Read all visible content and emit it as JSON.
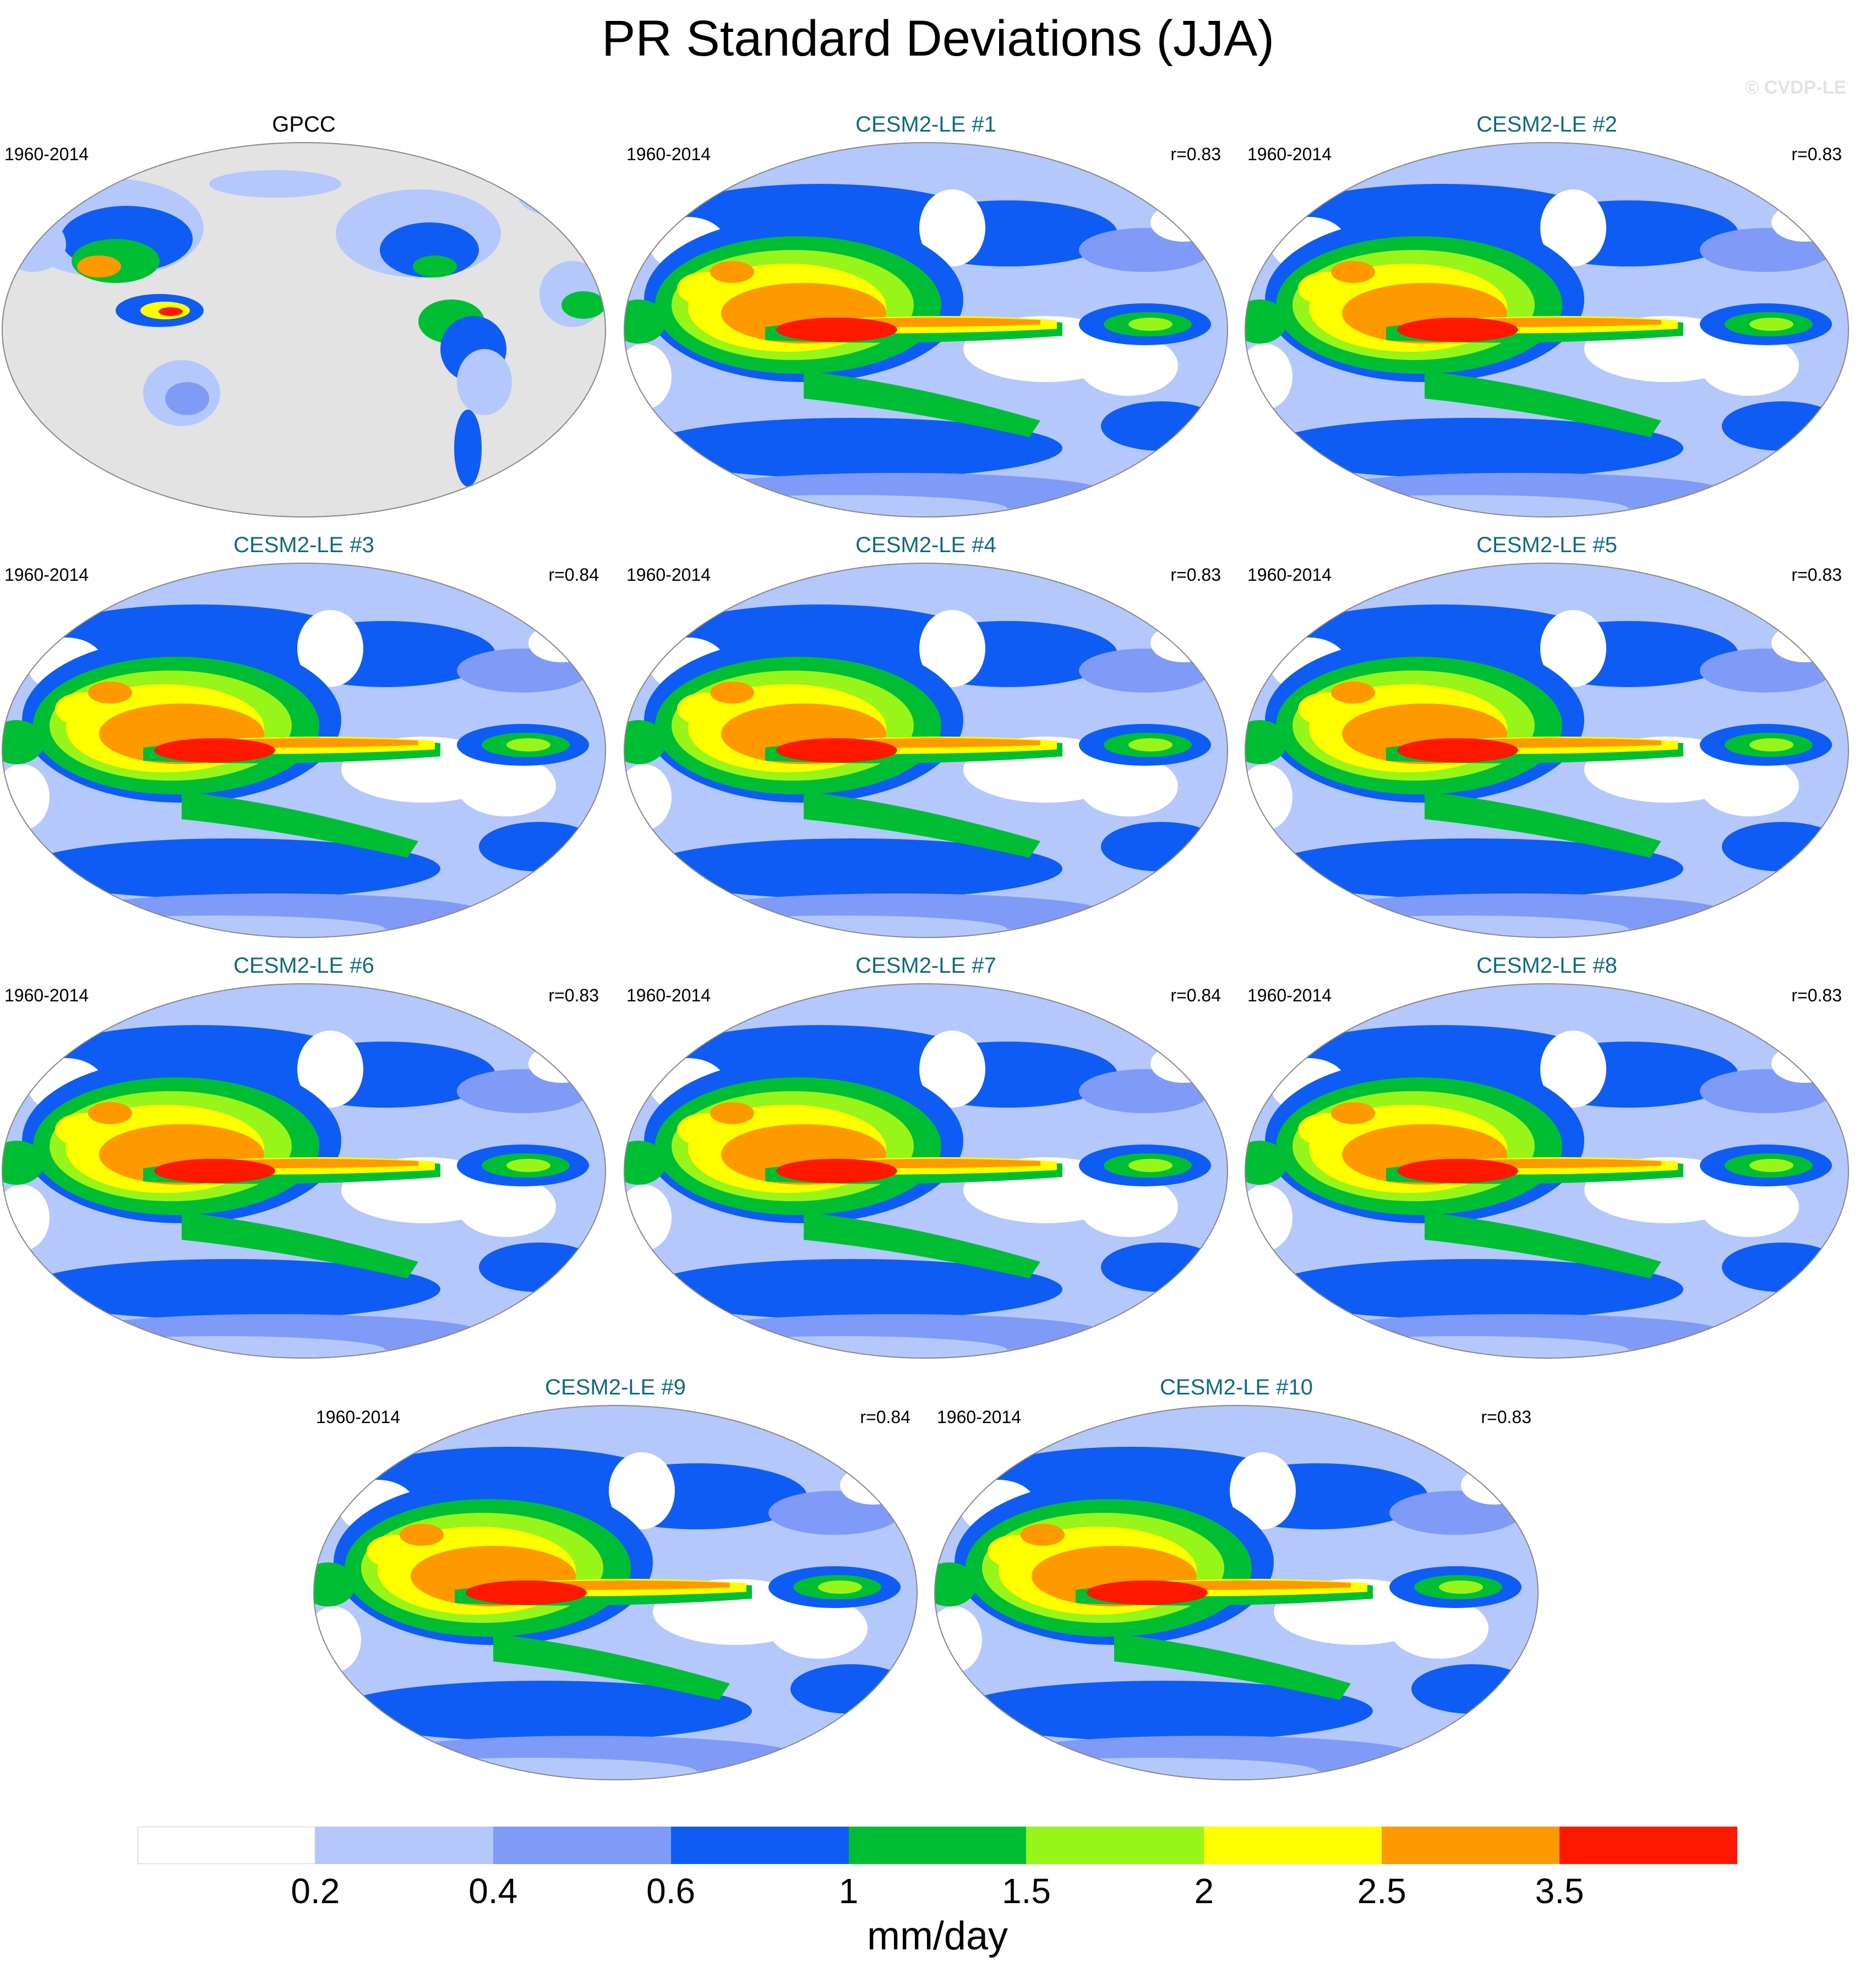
{
  "title": "PR Standard Deviations (JJA)",
  "watermark": "© CVDP-LE",
  "panels": [
    {
      "label": "GPCC",
      "period": "1960-2014",
      "r": "",
      "observed": true
    },
    {
      "label": "CESM2-LE #1",
      "period": "1960-2014",
      "r": "r=0.83",
      "observed": false
    },
    {
      "label": "CESM2-LE #2",
      "period": "1960-2014",
      "r": "r=0.83",
      "observed": false
    },
    {
      "label": "CESM2-LE #3",
      "period": "1960-2014",
      "r": "r=0.84",
      "observed": false
    },
    {
      "label": "CESM2-LE #4",
      "period": "1960-2014",
      "r": "r=0.83",
      "observed": false
    },
    {
      "label": "CESM2-LE #5",
      "period": "1960-2014",
      "r": "r=0.83",
      "observed": false
    },
    {
      "label": "CESM2-LE #6",
      "period": "1960-2014",
      "r": "r=0.83",
      "observed": false
    },
    {
      "label": "CESM2-LE #7",
      "period": "1960-2014",
      "r": "r=0.84",
      "observed": false
    },
    {
      "label": "CESM2-LE #8",
      "period": "1960-2014",
      "r": "r=0.83",
      "observed": false
    },
    {
      "label": "CESM2-LE #9",
      "period": "1960-2014",
      "r": "r=0.84",
      "observed": false
    },
    {
      "label": "CESM2-LE #10",
      "period": "1960-2014",
      "r": "r=0.83",
      "observed": false
    }
  ],
  "legend": {
    "units": "mm/day",
    "colors": [
      "#ffffff",
      "#b5c8fb",
      "#7f9bf7",
      "#0e5cf4",
      "#00be33",
      "#98f51a",
      "#ffff00",
      "#ff9900",
      "#ff1800"
    ],
    "ticks": [
      "0.2",
      "0.4",
      "0.6",
      "1",
      "1.5",
      "2",
      "2.5",
      "3.5"
    ]
  },
  "colors": {
    "land_mask": "#e3e3e3",
    "member_title": "#0f6a80"
  }
}
